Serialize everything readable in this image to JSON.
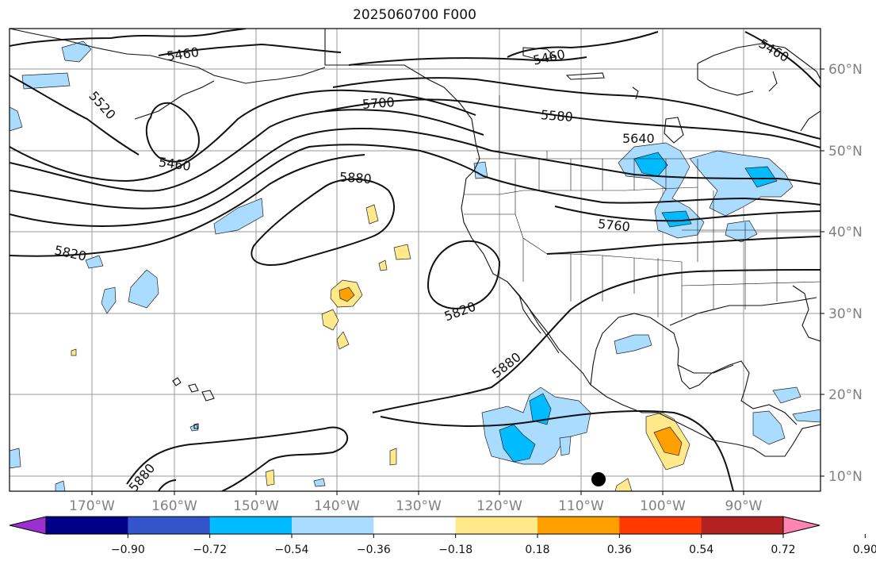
{
  "title": "2025060700 F000",
  "lat_labels": [
    "60°N",
    "50°N",
    "40°N",
    "30°N",
    "20°N",
    "10°N"
  ],
  "lon_labels": [
    "170°W",
    "160°W",
    "150°W",
    "140°W",
    "130°W",
    "120°W",
    "110°W",
    "100°W",
    "90°W"
  ],
  "contour_labels": [
    "5460",
    "5460",
    "5460",
    "5460",
    "5520",
    "5700",
    "5580",
    "5640",
    "5880",
    "5760",
    "5820",
    "5820",
    "5880",
    "5880"
  ],
  "colorbar": {
    "ticks": [
      "−0.90",
      "−0.72",
      "−0.54",
      "−0.36",
      "−0.18",
      "0.18",
      "0.36",
      "0.54",
      "0.72",
      "0.90"
    ],
    "colors": [
      "#9b30d0",
      "#000088",
      "#3355cc",
      "#00bbff",
      "#aadcff",
      "#ffffff",
      "#ffe98a",
      "#ffa000",
      "#ff3a00",
      "#b22222",
      "#ff85b0"
    ]
  },
  "marker": "storm-center-marker"
}
